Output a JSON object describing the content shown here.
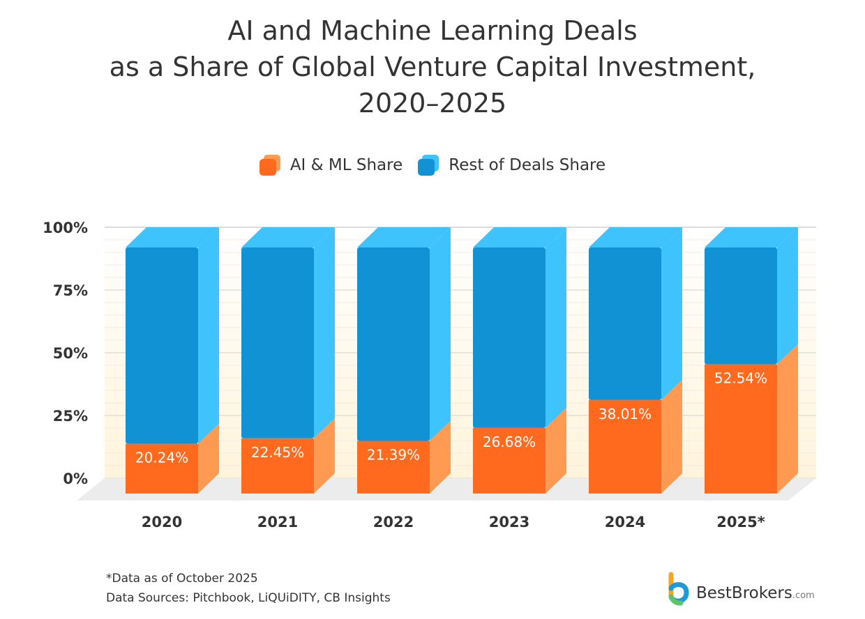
{
  "title": {
    "line1": "AI and Machine Learning Deals",
    "line2": "as a Share of Global Venture Capital Investment,",
    "line3": "2020–2025"
  },
  "legend": {
    "ai_label": "AI & ML Share",
    "rest_label": "Rest of Deals Share"
  },
  "colors": {
    "ai_front": "#ff6a1f",
    "ai_side": "#ff9a52",
    "rest_front": "#1092d4",
    "rest_side": "#3fc3fc",
    "floor": "#ececec",
    "grid": "#e2ddd2",
    "bg_top": "#ffffff",
    "bg_bottom": "#fff4dc"
  },
  "chart_data": {
    "type": "bar",
    "stacked": true,
    "title": "AI and Machine Learning Deals as a Share of Global Venture Capital Investment, 2020–2025",
    "categories": [
      "2020",
      "2021",
      "2022",
      "2023",
      "2024",
      "2025*"
    ],
    "series": [
      {
        "name": "AI & ML Share",
        "values": [
          20.24,
          22.45,
          21.39,
          26.68,
          38.01,
          52.54
        ]
      },
      {
        "name": "Rest of Deals Share",
        "values": [
          79.76,
          77.55,
          78.61,
          73.32,
          61.99,
          47.46
        ]
      }
    ],
    "value_labels": [
      "20.24%",
      "22.45%",
      "21.39%",
      "26.68%",
      "38.01%",
      "52.54%"
    ],
    "y_ticks": [
      "0%",
      "25%",
      "50%",
      "75%",
      "100%"
    ],
    "y_tick_values": [
      0,
      25,
      50,
      75,
      100
    ],
    "ylim": [
      0,
      100
    ],
    "xlabel": "",
    "ylabel": "",
    "grid": true,
    "legend_position": "top"
  },
  "footnote": {
    "note": "*Data as of October 2025",
    "sources": "Data Sources: Pitchbook, LiQUiDITY, CB Insights"
  },
  "logo": {
    "name": "BestBrokers",
    "suffix": ".com"
  }
}
